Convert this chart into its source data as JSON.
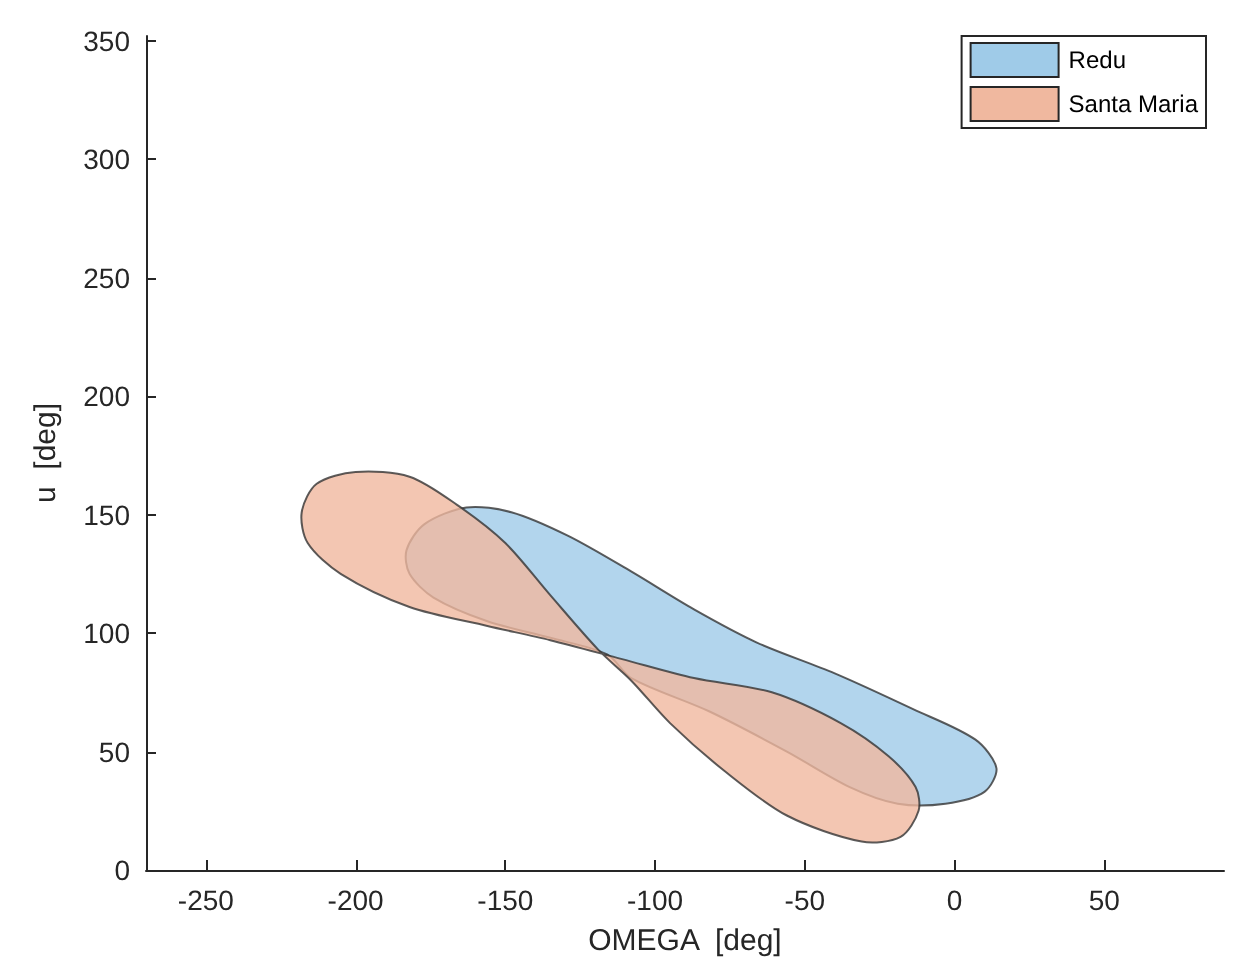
{
  "chart_data": {
    "type": "area",
    "xlabel": "OMEGA  [deg]",
    "ylabel": "u  [deg]",
    "xlim": [
      -270,
      90
    ],
    "xticks": [
      -250,
      -200,
      -150,
      -100,
      -50,
      0,
      50
    ],
    "ylim": [
      0,
      352
    ],
    "yticks": [
      0,
      50,
      100,
      150,
      200,
      250,
      300,
      350
    ],
    "grid": false,
    "legend": "top right",
    "series": [
      {
        "name": "Redu",
        "color": "#9fcbe8",
        "x": [
          -183,
          -177,
          -163,
          -148,
          -129,
          -108,
          -87,
          -66,
          -40,
          -14,
          7,
          14,
          10,
          -3,
          -19,
          -35,
          -56,
          -82,
          -108,
          -116,
          -135,
          -156,
          -174,
          -182
        ],
        "values": [
          135,
          146,
          153,
          151,
          141,
          126,
          110,
          96,
          83,
          68,
          55,
          43,
          33,
          28,
          28,
          35,
          50,
          67,
          81,
          91,
          98,
          105,
          115,
          125
        ]
      },
      {
        "name": "Santa Maria",
        "color": "#f0b89f",
        "x": [
          -218,
          -213,
          -200,
          -182,
          -166,
          -150,
          -135,
          -119,
          -108,
          -95,
          -77,
          -56,
          -31,
          -18,
          -12,
          -13,
          -22,
          -38,
          -61,
          -87,
          -111,
          -135,
          -156,
          -182,
          -205,
          -216
        ],
        "values": [
          151,
          163,
          168,
          166,
          154,
          138,
          116,
          93,
          80,
          62,
          42,
          23,
          12,
          14,
          25,
          35,
          48,
          62,
          75,
          81,
          89,
          97,
          103,
          111,
          125,
          138
        ]
      }
    ]
  }
}
